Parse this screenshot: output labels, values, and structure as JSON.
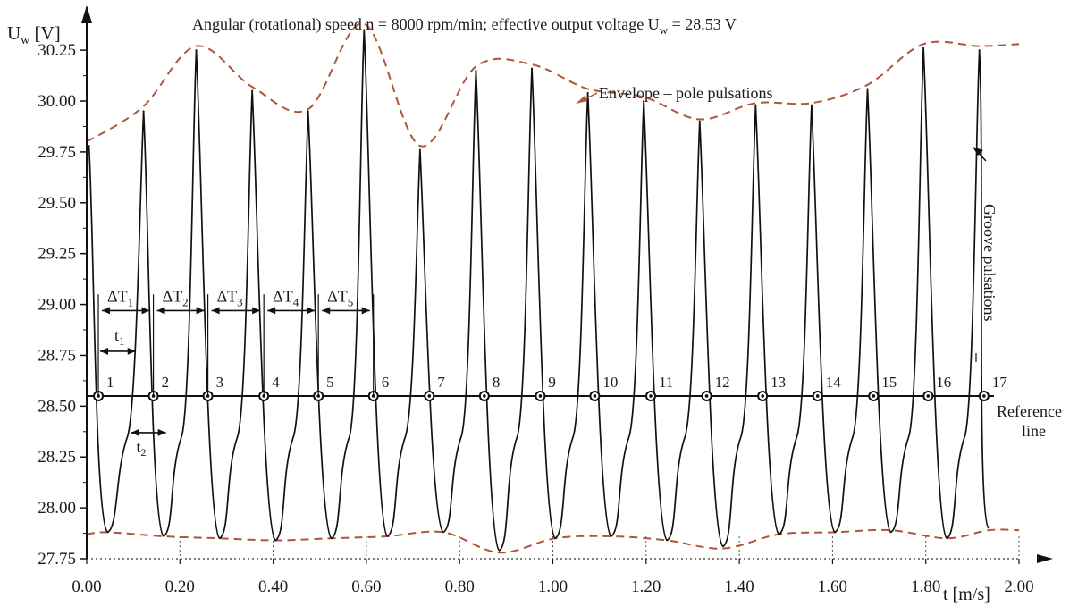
{
  "chart_data": {
    "type": "line",
    "title": "Angular (rotational) speed n = 8000 rpm/min; effective output voltage U",
    "title_subscript": "w",
    "title_tail": " = 28.53 V",
    "ylabel": "U",
    "ylabel_subscript": "w",
    "ylabel_unit": " [V]",
    "xlabel": "t [m/s]",
    "xlim": [
      0.0,
      2.0
    ],
    "ylim": [
      27.75,
      30.4
    ],
    "x_ticks": [
      "0.00",
      "0.20",
      "0.40",
      "0.60",
      "0.80",
      "1.00",
      "1.20",
      "1.40",
      "1.60",
      "1.80",
      "2.00"
    ],
    "x_tick_values": [
      0.0,
      0.2,
      0.4,
      0.6,
      0.8,
      1.0,
      1.2,
      1.4,
      1.6,
      1.8,
      2.0
    ],
    "y_ticks": [
      "27.75",
      "28.00",
      "28.25",
      "28.50",
      "28.75",
      "29.00",
      "29.25",
      "29.50",
      "29.75",
      "30.00",
      "30.25"
    ],
    "y_tick_values": [
      27.75,
      28.0,
      28.25,
      28.5,
      28.75,
      29.0,
      29.25,
      29.5,
      29.75,
      30.0,
      30.25
    ],
    "colors": {
      "signal": "#111111",
      "envelope": "#b0553a",
      "axis": "#111111"
    },
    "reference_line": {
      "y": 28.55,
      "label_line1": "Reference",
      "label_line2": "line"
    },
    "signal": {
      "peaks": [
        {
          "x": 0.005,
          "y": 29.78
        },
        {
          "x": 0.122,
          "y": 29.95
        },
        {
          "x": 0.235,
          "y": 30.25
        },
        {
          "x": 0.355,
          "y": 30.05
        },
        {
          "x": 0.475,
          "y": 29.95
        },
        {
          "x": 0.595,
          "y": 30.35
        },
        {
          "x": 0.715,
          "y": 29.76
        },
        {
          "x": 0.835,
          "y": 30.15
        },
        {
          "x": 0.955,
          "y": 30.16
        },
        {
          "x": 1.075,
          "y": 30.04
        },
        {
          "x": 1.195,
          "y": 30.0
        },
        {
          "x": 1.315,
          "y": 29.9
        },
        {
          "x": 1.435,
          "y": 29.98
        },
        {
          "x": 1.555,
          "y": 29.98
        },
        {
          "x": 1.675,
          "y": 30.06
        },
        {
          "x": 1.795,
          "y": 30.26
        },
        {
          "x": 1.915,
          "y": 30.25
        }
      ],
      "troughs": [
        {
          "x": 0.045,
          "y": 27.88
        },
        {
          "x": 0.165,
          "y": 27.86
        },
        {
          "x": 0.285,
          "y": 27.85
        },
        {
          "x": 0.405,
          "y": 27.84
        },
        {
          "x": 0.525,
          "y": 27.85
        },
        {
          "x": 0.645,
          "y": 27.86
        },
        {
          "x": 0.765,
          "y": 27.88
        },
        {
          "x": 0.885,
          "y": 27.79
        },
        {
          "x": 1.005,
          "y": 27.85
        },
        {
          "x": 1.125,
          "y": 27.86
        },
        {
          "x": 1.245,
          "y": 27.84
        },
        {
          "x": 1.365,
          "y": 27.81
        },
        {
          "x": 1.485,
          "y": 27.87
        },
        {
          "x": 1.605,
          "y": 27.88
        },
        {
          "x": 1.725,
          "y": 27.88
        },
        {
          "x": 1.845,
          "y": 27.85
        },
        {
          "x": 1.935,
          "y": 27.9
        }
      ]
    },
    "envelope_upper": [
      {
        "x": 0.0,
        "y": 29.8
      },
      {
        "x": 0.12,
        "y": 29.97
      },
      {
        "x": 0.235,
        "y": 30.27
      },
      {
        "x": 0.355,
        "y": 30.07
      },
      {
        "x": 0.475,
        "y": 29.96
      },
      {
        "x": 0.595,
        "y": 30.38
      },
      {
        "x": 0.715,
        "y": 29.78
      },
      {
        "x": 0.835,
        "y": 30.17
      },
      {
        "x": 0.955,
        "y": 30.18
      },
      {
        "x": 1.075,
        "y": 30.06
      },
      {
        "x": 1.195,
        "y": 30.02
      },
      {
        "x": 1.315,
        "y": 29.91
      },
      {
        "x": 1.435,
        "y": 29.99
      },
      {
        "x": 1.555,
        "y": 29.99
      },
      {
        "x": 1.675,
        "y": 30.08
      },
      {
        "x": 1.795,
        "y": 30.28
      },
      {
        "x": 1.915,
        "y": 30.27
      },
      {
        "x": 2.0,
        "y": 30.28
      }
    ],
    "envelope_lower": [
      {
        "x": 0.0,
        "y": 27.87
      },
      {
        "x": 0.045,
        "y": 27.88
      },
      {
        "x": 0.165,
        "y": 27.86
      },
      {
        "x": 0.285,
        "y": 27.85
      },
      {
        "x": 0.405,
        "y": 27.84
      },
      {
        "x": 0.525,
        "y": 27.85
      },
      {
        "x": 0.645,
        "y": 27.86
      },
      {
        "x": 0.765,
        "y": 27.88
      },
      {
        "x": 0.885,
        "y": 27.78
      },
      {
        "x": 1.005,
        "y": 27.85
      },
      {
        "x": 1.125,
        "y": 27.86
      },
      {
        "x": 1.245,
        "y": 27.84
      },
      {
        "x": 1.365,
        "y": 27.8
      },
      {
        "x": 1.485,
        "y": 27.87
      },
      {
        "x": 1.605,
        "y": 27.88
      },
      {
        "x": 1.725,
        "y": 27.89
      },
      {
        "x": 1.845,
        "y": 27.85
      },
      {
        "x": 1.935,
        "y": 27.89
      },
      {
        "x": 2.0,
        "y": 27.89
      }
    ],
    "crossings": [
      {
        "x": 0.025,
        "label": "1"
      },
      {
        "x": 0.143,
        "label": "2"
      },
      {
        "x": 0.26,
        "label": "3"
      },
      {
        "x": 0.38,
        "label": "4"
      },
      {
        "x": 0.497,
        "label": "5"
      },
      {
        "x": 0.615,
        "label": "6"
      },
      {
        "x": 0.735,
        "label": "7"
      },
      {
        "x": 0.853,
        "label": "8"
      },
      {
        "x": 0.973,
        "label": "9"
      },
      {
        "x": 1.09,
        "label": "10"
      },
      {
        "x": 1.21,
        "label": "11"
      },
      {
        "x": 1.33,
        "label": "12"
      },
      {
        "x": 1.45,
        "label": "13"
      },
      {
        "x": 1.568,
        "label": "14"
      },
      {
        "x": 1.688,
        "label": "15"
      },
      {
        "x": 1.805,
        "label": "16"
      },
      {
        "x": 1.925,
        "label": "17"
      }
    ],
    "period_intervals": [
      {
        "x0": 0.025,
        "x1": 0.143,
        "label": "ΔT",
        "sub": "1"
      },
      {
        "x0": 0.143,
        "x1": 0.26,
        "label": "ΔT",
        "sub": "2"
      },
      {
        "x0": 0.26,
        "x1": 0.38,
        "label": "ΔT",
        "sub": "3"
      },
      {
        "x0": 0.38,
        "x1": 0.497,
        "label": "ΔT",
        "sub": "4"
      },
      {
        "x0": 0.497,
        "x1": 0.615,
        "label": "ΔT",
        "sub": "5"
      }
    ],
    "t1_interval": {
      "x0": 0.025,
      "x1": 0.105,
      "label": "t",
      "sub": "1"
    },
    "t2_interval": {
      "x0": 0.095,
      "x1": 0.17,
      "label": "t",
      "sub": "2"
    },
    "annotations": {
      "envelope": "Envelope – pole pulsations",
      "groove": "Groove pulsations"
    }
  }
}
